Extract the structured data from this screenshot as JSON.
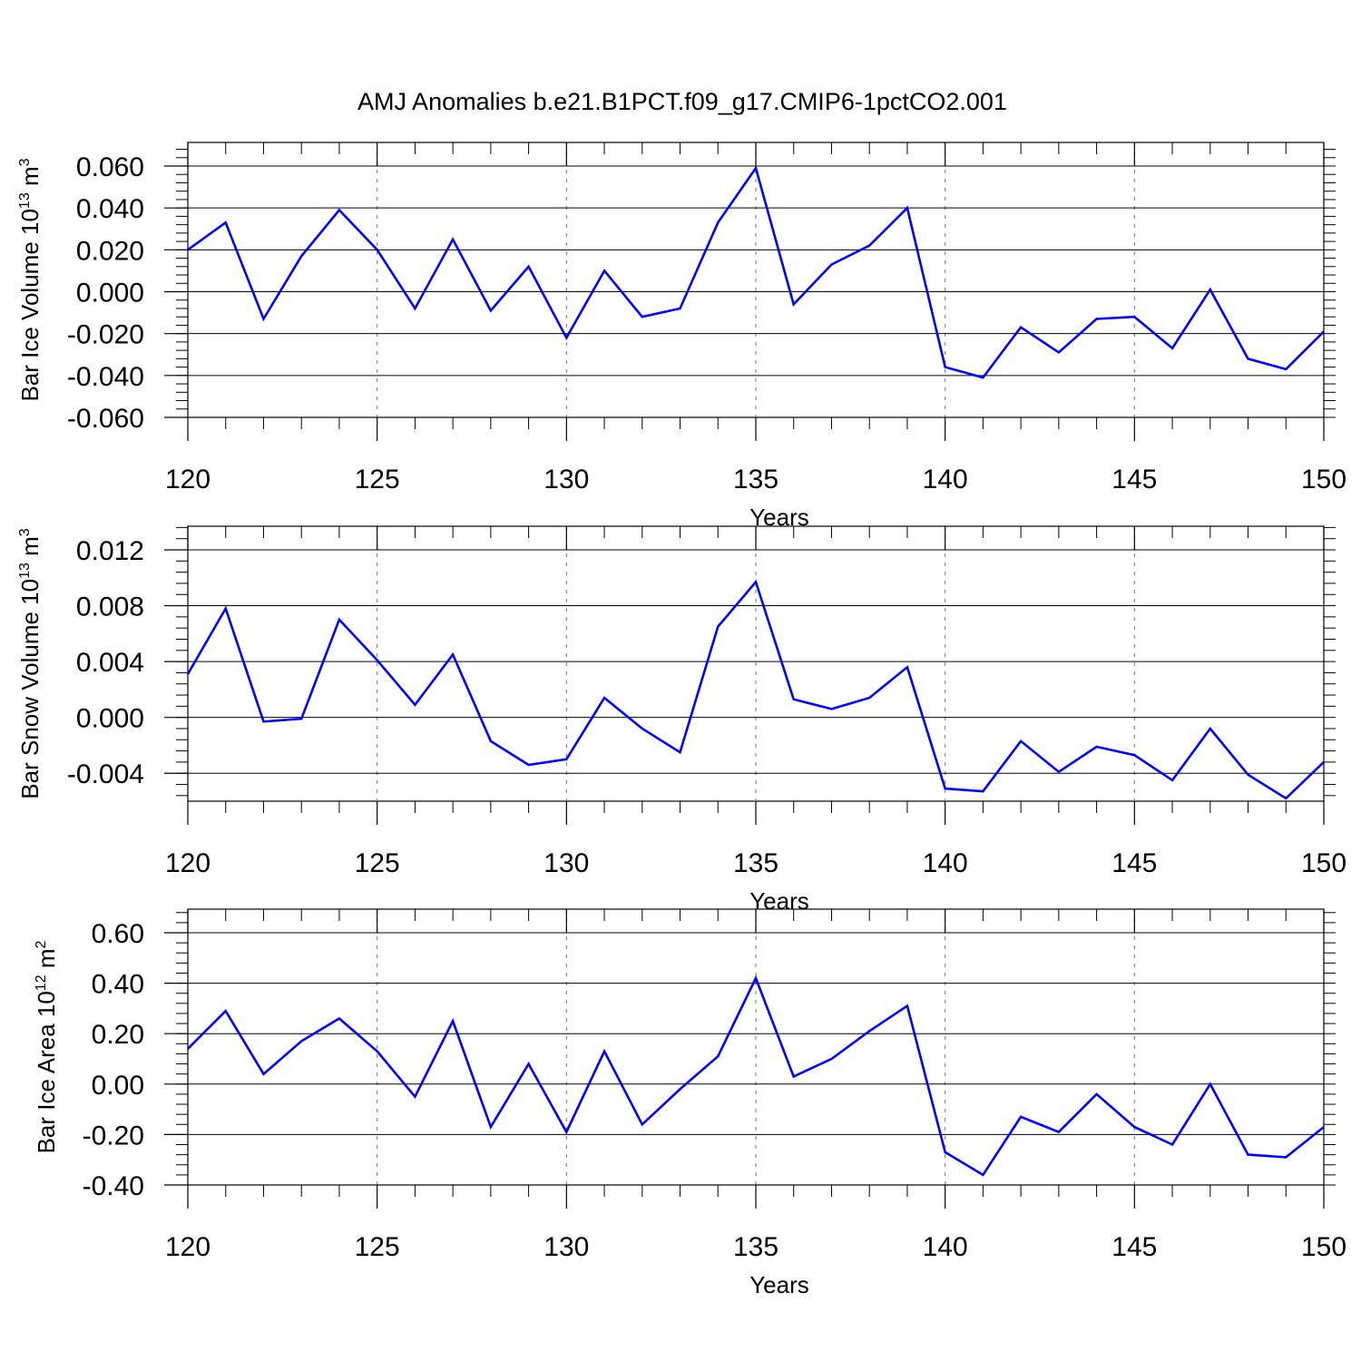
{
  "title": "AMJ Anomalies b.e21.B1PCT.f09_g17.CMIP6-1pctCO2.001",
  "colors": {
    "line": "#0000ff",
    "frame": "#000000",
    "grid": "#888888"
  },
  "chart_data": [
    {
      "type": "line",
      "ylabel": {
        "prefix": "Bar Ice Volume 10",
        "exp": "13",
        "unit": " m",
        "unit_exp": "3"
      },
      "xlabel": "Years",
      "xlim": [
        120,
        150
      ],
      "ylim": [
        -0.06,
        0.06
      ],
      "xticks": [
        "120",
        "125",
        "130",
        "135",
        "140",
        "145",
        "150"
      ],
      "yticks": [
        "0.060",
        "0.040",
        "0.020",
        "0.000",
        "-0.020",
        "-0.040",
        "-0.060"
      ],
      "ytick_values": [
        0.06,
        0.04,
        0.02,
        0.0,
        -0.02,
        -0.04,
        -0.06
      ],
      "grid_x": [
        125,
        130,
        140,
        145
      ],
      "grid_x_extra": [
        135
      ],
      "series": [
        {
          "x": [
            120,
            121,
            122,
            123,
            124,
            125,
            126,
            127,
            128,
            129,
            130,
            131,
            132,
            133,
            134,
            135,
            136,
            137,
            138,
            139,
            140,
            141,
            142,
            143,
            144,
            145,
            146,
            147,
            148,
            149,
            150
          ],
          "values": [
            0.02,
            0.033,
            -0.013,
            0.017,
            0.039,
            0.02,
            -0.008,
            0.025,
            -0.009,
            0.012,
            -0.022,
            0.01,
            -0.012,
            -0.008,
            0.033,
            0.059,
            -0.006,
            0.013,
            0.022,
            0.04,
            -0.036,
            -0.041,
            -0.017,
            -0.029,
            -0.013,
            -0.012,
            -0.027,
            0.001,
            -0.032,
            -0.037,
            -0.019
          ]
        }
      ]
    },
    {
      "type": "line",
      "ylabel": {
        "prefix": "Bar Snow Volume 10",
        "exp": "13",
        "unit": " m",
        "unit_exp": "3"
      },
      "xlabel": "Years",
      "xlim": [
        120,
        150
      ],
      "ylim": [
        -0.006,
        0.012
      ],
      "xticks": [
        "120",
        "125",
        "130",
        "135",
        "140",
        "145",
        "150"
      ],
      "yticks": [
        "0.012",
        "0.008",
        "0.004",
        "0.000",
        "-0.004"
      ],
      "ytick_values": [
        0.012,
        0.008,
        0.004,
        0.0,
        -0.004
      ],
      "grid_x": [
        125,
        130,
        140,
        145
      ],
      "grid_x_extra": [
        135
      ],
      "series": [
        {
          "x": [
            120,
            121,
            122,
            123,
            124,
            125,
            126,
            127,
            128,
            129,
            130,
            131,
            132,
            133,
            134,
            135,
            136,
            137,
            138,
            139,
            140,
            141,
            142,
            143,
            144,
            145,
            146,
            147,
            148,
            149,
            150
          ],
          "values": [
            0.0031,
            0.0078,
            -0.0003,
            -0.0001,
            0.007,
            0.0041,
            0.0009,
            0.0045,
            -0.0017,
            -0.0034,
            -0.003,
            0.0014,
            -0.0008,
            -0.0025,
            0.0065,
            0.0097,
            0.0013,
            0.0006,
            0.0014,
            0.0036,
            -0.0051,
            -0.0053,
            -0.0017,
            -0.0039,
            -0.0021,
            -0.0027,
            -0.0045,
            -0.0008,
            -0.0041,
            -0.0058,
            -0.0032
          ]
        }
      ]
    },
    {
      "type": "line",
      "ylabel": {
        "prefix": "Bar Ice Area 10",
        "exp": "12",
        "unit": " m",
        "unit_exp": "2"
      },
      "xlabel": "Years",
      "xlim": [
        120,
        150
      ],
      "ylim": [
        -0.4,
        0.6
      ],
      "xticks": [
        "120",
        "125",
        "130",
        "135",
        "140",
        "145",
        "150"
      ],
      "yticks": [
        "0.60",
        "0.40",
        "0.20",
        "0.00",
        "-0.20",
        "-0.40"
      ],
      "ytick_values": [
        0.6,
        0.4,
        0.2,
        0.0,
        -0.2,
        -0.4
      ],
      "grid_x": [
        125,
        130,
        140,
        145
      ],
      "grid_x_extra": [
        135
      ],
      "series": [
        {
          "x": [
            120,
            121,
            122,
            123,
            124,
            125,
            126,
            127,
            128,
            129,
            130,
            131,
            132,
            133,
            134,
            135,
            136,
            137,
            138,
            139,
            140,
            141,
            142,
            143,
            144,
            145,
            146,
            147,
            148,
            149,
            150
          ],
          "values": [
            0.14,
            0.29,
            0.04,
            0.17,
            0.26,
            0.13,
            -0.05,
            0.25,
            -0.17,
            0.08,
            -0.19,
            0.13,
            -0.16,
            -0.02,
            0.11,
            0.42,
            0.03,
            0.1,
            0.21,
            0.31,
            -0.27,
            -0.36,
            -0.13,
            -0.19,
            -0.04,
            -0.17,
            -0.24,
            0.0,
            -0.28,
            -0.29,
            -0.17
          ]
        }
      ]
    }
  ]
}
